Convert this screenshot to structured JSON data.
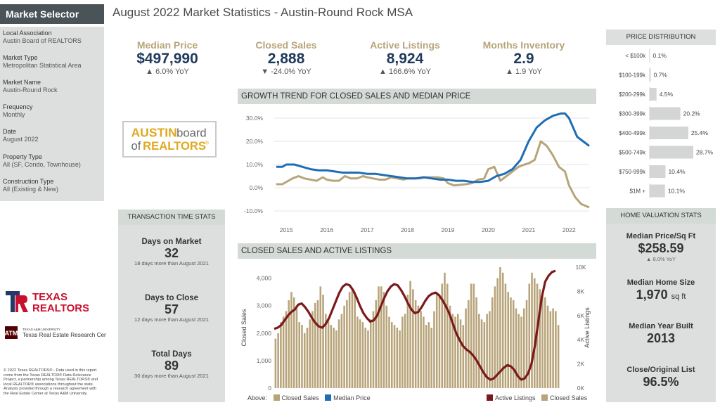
{
  "sidebar": {
    "header": "Market Selector",
    "fields": [
      {
        "label": "Local Association",
        "value": "Austin Board of REALTORS"
      },
      {
        "label": "Market Type",
        "value": "Metropolitan Statistical Area"
      },
      {
        "label": "Market Name",
        "value": "Austin-Round Rock"
      },
      {
        "label": "Frequency",
        "value": "Monthly"
      },
      {
        "label": "Date",
        "value": "August 2022"
      },
      {
        "label": "Property Type",
        "value": "All (SF, Condo, Townhouse)"
      },
      {
        "label": "Construction Type",
        "value": "All (Existing & New)"
      }
    ],
    "texas_logo_line1": "TEXAS",
    "texas_logo_line2": "REALTORS",
    "tamu_small": "TEXAS A&M UNIVERSITY",
    "tamu_name": "Texas Real Estate Research Center",
    "copyright": "© 2022 Texas REALTORS® - Data used in this report come from the Texas REALTOR® Data Relevance Project, a partnership among Texas REALTORS® and local REALTOR® associations throughout the state. Analysis provided through a research agreement with the Real Estate Center at Texas A&M University."
  },
  "title": "August 2022 Market Statistics - Austin-Round Rock MSA",
  "kpis": [
    {
      "label": "Median Price",
      "value": "$497,990",
      "yoy": "▲ 6.0% YoY"
    },
    {
      "label": "Closed Sales",
      "value": "2,888",
      "yoy": "▼ -24.0% YoY"
    },
    {
      "label": "Active Listings",
      "value": "8,924",
      "yoy": "▲ 166.6% YoY"
    },
    {
      "label": "Months Inventory",
      "value": "2.9",
      "yoy": "▲ 1.9 YoY"
    }
  ],
  "austin_logo": {
    "word1": "AUSTIN",
    "word2": "board",
    "word3": "of",
    "word4": "REALTORS",
    "mark": "®"
  },
  "growth_chart_header": "GROWTH TREND FOR CLOSED SALES AND MEDIAN PRICE",
  "sales_chart_header": "CLOSED SALES AND ACTIVE LISTINGS",
  "transaction": {
    "header": "TRANSACTION TIME STATS",
    "items": [
      {
        "label": "Days on Market",
        "value": "32",
        "note": "18 days more than August 2021"
      },
      {
        "label": "Days to Close",
        "value": "57",
        "note": "12 days more than August 2021"
      },
      {
        "label": "Total Days",
        "value": "89",
        "note": "30 days more than August 2021"
      }
    ]
  },
  "price_distribution": {
    "header": "PRICE DISTRIBUTION",
    "bar_color": "#d3d6d4"
  },
  "home_valuation": {
    "header": "HOME VALUATION STATS",
    "items": [
      {
        "label": "Median Price/Sq Ft",
        "value": "$258.59",
        "unit": "",
        "note": "▲ 8.0% YoY"
      },
      {
        "label": "Median Home Size",
        "value": "1,970",
        "unit": "sq ft",
        "note": ""
      },
      {
        "label": "Median Year Built",
        "value": "2013",
        "unit": "",
        "note": ""
      },
      {
        "label": "Close/Original List",
        "value": "96.5%",
        "unit": "",
        "note": ""
      }
    ]
  },
  "legend": {
    "above": "Above:",
    "closed_sales": "Closed Sales",
    "median_price": "Median Price",
    "active_listings": "Active Listings",
    "closed_sales_2": "Closed Sales"
  },
  "colors": {
    "tan": "#b8a47a",
    "blue": "#1f6db5",
    "maroon": "#7a1a1a",
    "navy": "#1f3a5a"
  },
  "chart_data": [
    {
      "type": "line",
      "title": "GROWTH TREND FOR CLOSED SALES AND MEDIAN PRICE",
      "x_ticks": [
        "2015",
        "2016",
        "2017",
        "2018",
        "2019",
        "2020",
        "2021",
        "2022"
      ],
      "y_ticks": [
        "30.0%",
        "20.0%",
        "10.0%",
        "0.0%",
        "-10.0%"
      ],
      "ylim": [
        -10,
        30
      ],
      "x_range": [
        2014.7,
        2022.5
      ],
      "series": [
        {
          "name": "Closed Sales",
          "x": [
            2014.75,
            2014.9,
            2015.0,
            2015.15,
            2015.3,
            2015.45,
            2015.6,
            2015.75,
            2015.9,
            2016.0,
            2016.15,
            2016.3,
            2016.45,
            2016.6,
            2016.75,
            2016.9,
            2017.0,
            2017.15,
            2017.3,
            2017.45,
            2017.6,
            2017.75,
            2017.9,
            2018.0,
            2018.15,
            2018.3,
            2018.45,
            2018.6,
            2018.75,
            2018.9,
            2019.0,
            2019.15,
            2019.3,
            2019.45,
            2019.6,
            2019.75,
            2019.9,
            2020.0,
            2020.15,
            2020.3,
            2020.45,
            2020.6,
            2020.75,
            2020.9,
            2021.0,
            2021.15,
            2021.3,
            2021.45,
            2021.6,
            2021.75,
            2021.9,
            2022.0,
            2022.15,
            2022.3,
            2022.5
          ],
          "values": [
            1.5,
            1.5,
            2.5,
            4,
            5,
            4,
            3.5,
            3,
            4.5,
            3.5,
            3,
            3,
            5,
            4,
            4,
            5,
            4.5,
            4,
            3.5,
            3.5,
            4.5,
            4,
            3.5,
            4,
            4,
            4,
            4.5,
            4.5,
            4.5,
            4,
            2,
            1,
            1.2,
            1.5,
            2,
            3.5,
            4,
            8,
            9,
            3,
            5,
            7,
            9,
            10,
            10.5,
            12,
            20,
            18,
            14,
            9,
            7,
            1,
            -4,
            -7,
            -8.5
          ]
        },
        {
          "name": "Median Price",
          "x": [
            2014.75,
            2014.9,
            2015.0,
            2015.2,
            2015.4,
            2015.6,
            2015.8,
            2016.0,
            2016.2,
            2016.4,
            2016.6,
            2016.8,
            2017.0,
            2017.2,
            2017.4,
            2017.6,
            2017.8,
            2018.0,
            2018.2,
            2018.4,
            2018.6,
            2018.8,
            2019.0,
            2019.2,
            2019.4,
            2019.6,
            2019.8,
            2020.0,
            2020.2,
            2020.4,
            2020.6,
            2020.8,
            2021.0,
            2021.2,
            2021.4,
            2021.6,
            2021.8,
            2021.9,
            2022.0,
            2022.1,
            2022.2,
            2022.35,
            2022.5
          ],
          "values": [
            9,
            9,
            10,
            10,
            9,
            8,
            7.5,
            7.5,
            7,
            6.5,
            6.5,
            6.5,
            6,
            6,
            5.5,
            5,
            4.5,
            4,
            4,
            4.5,
            4,
            3.5,
            3.5,
            3,
            3,
            2.5,
            2.5,
            3,
            5,
            6,
            8,
            12,
            20,
            26,
            29,
            31,
            32,
            32,
            30,
            26,
            22,
            20,
            18
          ]
        }
      ]
    },
    {
      "type": "bar",
      "title": "CLOSED SALES AND ACTIVE LISTINGS",
      "ylabel": "Closed Sales",
      "y2label": "Active Listings",
      "y_ticks": [
        "4,000",
        "3,000",
        "2,000",
        "1,000",
        "0"
      ],
      "ylim": [
        0,
        4400
      ],
      "y2_ticks": [
        "10K",
        "8K",
        "6K",
        "4K",
        "2K",
        "0K"
      ],
      "y2lim": [
        0,
        10000
      ],
      "series": [
        {
          "name": "Closed Sales",
          "type": "bar",
          "values": [
            1800,
            2000,
            2400,
            2600,
            2800,
            3200,
            3500,
            3300,
            2900,
            2400,
            2300,
            2000,
            2200,
            2500,
            2800,
            3100,
            3200,
            3700,
            3400,
            2700,
            2500,
            2300,
            2200,
            2100,
            2500,
            2700,
            3000,
            3200,
            3500,
            3600,
            3500,
            2600,
            2500,
            2400,
            2200,
            2100,
            2500,
            2800,
            3200,
            3700,
            3700,
            3500,
            3000,
            2600,
            2400,
            2300,
            2200,
            2100,
            2600,
            2700,
            3400,
            3900,
            3600,
            3200,
            3000,
            2800,
            2600,
            2300,
            2400,
            2200,
            2800,
            3500,
            3400,
            3800,
            4200,
            3800,
            3000,
            2700,
            2600,
            2700,
            2500,
            2300,
            2900,
            3200,
            3800,
            3800,
            3300,
            2700,
            2500,
            2400,
            2700,
            2800,
            3300,
            3700,
            4000,
            4400,
            4200,
            3800,
            3500,
            3300,
            3200,
            2900,
            2700,
            2600,
            2900,
            3200,
            3800,
            4200,
            4000,
            3800,
            3600,
            3400,
            3300,
            3000,
            2800,
            2900,
            2800,
            2300
          ]
        },
        {
          "name": "Active Listings",
          "type": "line",
          "values": [
            4900,
            5000,
            5200,
            5600,
            6000,
            6300,
            6500,
            6900,
            7000,
            6700,
            6300,
            5800,
            5400,
            5100,
            5000,
            5300,
            5800,
            6500,
            7200,
            7900,
            8400,
            8600,
            8500,
            8100,
            7500,
            6800,
            6200,
            5800,
            5500,
            5600,
            6000,
            6700,
            7400,
            8000,
            8400,
            8600,
            8500,
            8100,
            7600,
            7000,
            6500,
            6200,
            6300,
            6700,
            7200,
            7600,
            7800,
            7900,
            7700,
            7300,
            6800,
            6200,
            5400,
            4600,
            4000,
            3500,
            3200,
            3000,
            2700,
            2300,
            1800,
            1300,
            900,
            700,
            800,
            1100,
            1400,
            1700,
            1900,
            1800,
            1500,
            1000,
            700,
            800,
            1200,
            2000,
            3500,
            5500,
            7500,
            8800,
            9300,
            9600,
            9700
          ]
        }
      ],
      "notes": "108 monthly bars 2014-2022; active listings overlay"
    },
    {
      "type": "bar",
      "title": "PRICE DISTRIBUTION",
      "categories": [
        "< $100k",
        "$100-199k",
        "$200-299k",
        "$300-399k",
        "$400-499k",
        "$500-749k",
        "$750-999k",
        "$1M +"
      ],
      "values": [
        0.1,
        0.7,
        4.5,
        20.2,
        25.4,
        28.7,
        10.4,
        10.1
      ],
      "labels": [
        "0.1%",
        "0.7%",
        "4.5%",
        "20.2%",
        "25.4%",
        "28.7%",
        "10.4%",
        "10.1%"
      ]
    }
  ]
}
